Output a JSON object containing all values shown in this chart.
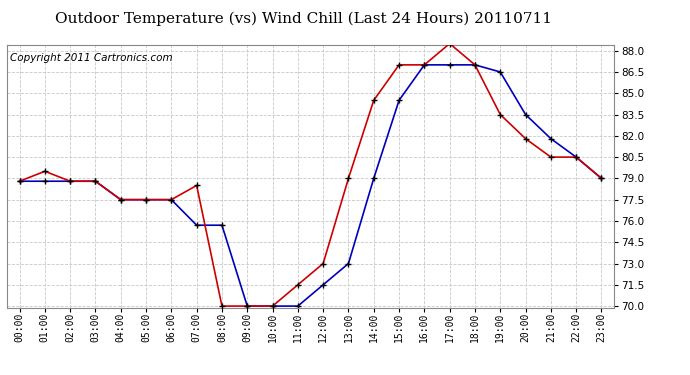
{
  "title": "Outdoor Temperature (vs) Wind Chill (Last 24 Hours) 20110711",
  "copyright_text": "Copyright 2011 Cartronics.com",
  "hours": [
    0,
    1,
    2,
    3,
    4,
    5,
    6,
    7,
    8,
    9,
    10,
    11,
    12,
    13,
    14,
    15,
    16,
    17,
    18,
    19,
    20,
    21,
    22,
    23
  ],
  "temp_red": [
    78.8,
    79.5,
    78.8,
    78.8,
    77.5,
    77.5,
    77.5,
    78.5,
    70.0,
    70.0,
    70.0,
    71.5,
    73.0,
    79.0,
    84.5,
    87.0,
    87.0,
    88.5,
    87.0,
    83.5,
    81.8,
    80.5,
    80.5,
    79.0
  ],
  "wind_chill_blue": [
    78.8,
    78.8,
    78.8,
    78.8,
    77.5,
    77.5,
    77.5,
    75.7,
    75.7,
    70.0,
    70.0,
    70.0,
    71.5,
    73.0,
    79.0,
    84.5,
    87.0,
    87.0,
    87.0,
    86.5,
    83.5,
    81.8,
    80.5,
    79.0
  ],
  "ytick_min": 70.0,
  "ytick_max": 88.0,
  "ytick_step": 1.5,
  "bg_color": "#ffffff",
  "plot_bg_color": "#ffffff",
  "grid_color": "#c8c8c8",
  "red_color": "#cc0000",
  "blue_color": "#0000bb",
  "marker_color": "#000000",
  "title_fontsize": 11,
  "copyright_fontsize": 7.5
}
